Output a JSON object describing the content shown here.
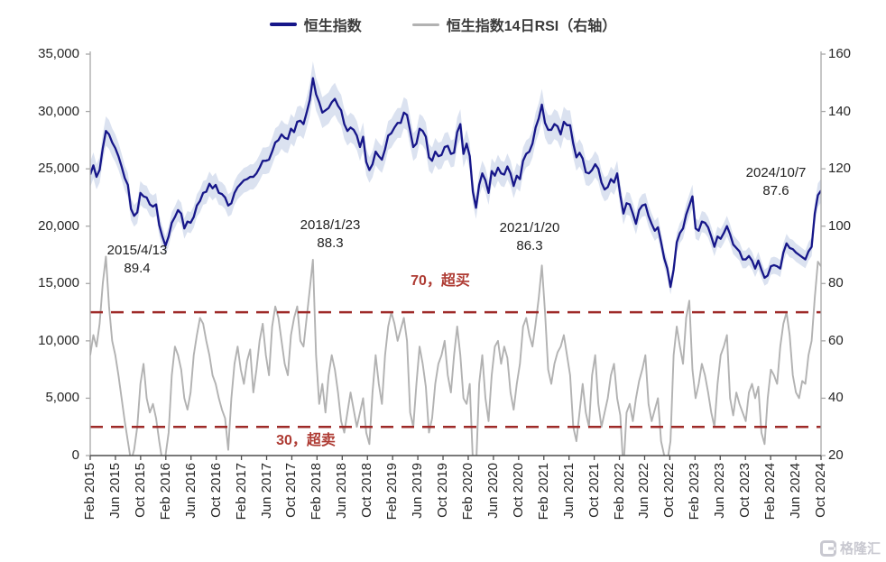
{
  "legend": {
    "items": [
      {
        "label": "恒生指数",
        "color": "#161689"
      },
      {
        "label": "恒生指数14日RSI（右轴）",
        "color": "#b2b2b2"
      }
    ]
  },
  "watermark": {
    "text": "格隆汇"
  },
  "chart_data": {
    "type": "line",
    "title": "",
    "x_start": "2015-02",
    "x_end": "2024-10",
    "x_tick_labels": [
      "Feb 2015",
      "Jun 2015",
      "Oct 2015",
      "Feb 2016",
      "Jun 2016",
      "Oct 2016",
      "Feb 2017",
      "Jun 2017",
      "Oct 2017",
      "Feb 2018",
      "Jun 2018",
      "Oct 2018",
      "Feb 2019",
      "Jun 2019",
      "Oct 2019",
      "Feb 2020",
      "Jun 2020",
      "Oct 2020",
      "Feb 2021",
      "Jun 2021",
      "Oct 2021",
      "Feb 2022",
      "Jun 2022",
      "Oct 2022",
      "Feb 2023",
      "Jun 2023",
      "Oct 2023",
      "Feb 2024",
      "Jun 2024",
      "Oct 2024"
    ],
    "left_axis": {
      "min": 0,
      "max": 35000,
      "ticks": [
        "35,000",
        "30,000",
        "25,000",
        "20,000",
        "15,000",
        "10,000",
        "5,000",
        "0"
      ]
    },
    "right_axis": {
      "min": 20,
      "max": 160,
      "ticks": [
        "160",
        "140",
        "120",
        "100",
        "80",
        "60",
        "40",
        "20"
      ]
    },
    "grid": false,
    "legend_position": "top-center",
    "series": [
      {
        "name": "恒生指数",
        "axis": "left",
        "color": "#161689",
        "band_color": "#dbe2f0",
        "band_pct": 0.045,
        "values": [
          24500,
          25300,
          24300,
          24900,
          26800,
          28300,
          28000,
          27300,
          26800,
          26100,
          25200,
          24200,
          23600,
          21500,
          20900,
          21200,
          22900,
          22600,
          22500,
          21900,
          21700,
          21900,
          20100,
          19100,
          18300,
          19100,
          20300,
          20800,
          21400,
          21100,
          19800,
          20400,
          20300,
          20800,
          21800,
          22200,
          22900,
          23000,
          23700,
          23300,
          23600,
          22900,
          22800,
          22500,
          21800,
          22000,
          22900,
          23400,
          23700,
          24000,
          24100,
          24300,
          24300,
          24600,
          25100,
          25700,
          25700,
          25800,
          26500,
          27300,
          27500,
          28000,
          27700,
          27600,
          28500,
          28200,
          29100,
          29200,
          28900,
          29900,
          31000,
          32900,
          31500,
          30800,
          29900,
          30100,
          30300,
          30800,
          31100,
          30500,
          30100,
          28900,
          28300,
          28600,
          28400,
          27900,
          26900,
          27800,
          25600,
          24900,
          25400,
          26500,
          26100,
          25800,
          26700,
          27900,
          28100,
          28600,
          29000,
          29000,
          29900,
          29700,
          28300,
          26900,
          27200,
          28500,
          28300,
          27800,
          26000,
          25700,
          26500,
          26100,
          26200,
          26900,
          27000,
          26300,
          26400,
          28200,
          28900,
          26300,
          27200,
          26100,
          23000,
          21600,
          23600,
          24600,
          24000,
          22900,
          24800,
          24400,
          25100,
          24600,
          24500,
          25200,
          24600,
          23500,
          24400,
          24100,
          25700,
          26300,
          26500,
          27200,
          28600,
          29400,
          30600,
          29000,
          28400,
          28400,
          28900,
          28700,
          28000,
          29100,
          28800,
          28800,
          27200,
          26000,
          26400,
          25900,
          24700,
          24600,
          24900,
          25400,
          25000,
          23800,
          23200,
          23400,
          24100,
          23800,
          24600,
          22700,
          21100,
          22000,
          21900,
          21100,
          20200,
          21400,
          21800,
          21900,
          20900,
          20200,
          19600,
          19900,
          18600,
          17200,
          16300,
          14700,
          16200,
          18600,
          19400,
          19800,
          21000,
          21800,
          22600,
          19800,
          19600,
          20400,
          20300,
          19900,
          19100,
          18200,
          19100,
          18900,
          19400,
          20000,
          19300,
          18400,
          18100,
          17800,
          17100,
          17100,
          17400,
          17000,
          16300,
          17000,
          16200,
          15500,
          15700,
          16500,
          16600,
          16500,
          16300,
          17700,
          18500,
          18100,
          18000,
          17700,
          17500,
          17300,
          17100,
          17800,
          18200,
          21100,
          22700,
          23100
        ]
      },
      {
        "name": "恒生指数14日RSI（右轴）",
        "axis": "right",
        "color": "#b2b2b2",
        "values": [
          55,
          62,
          58,
          66,
          80,
          89.4,
          72,
          60,
          55,
          48,
          40,
          32,
          25,
          18,
          22,
          30,
          45,
          52,
          40,
          35,
          38,
          33,
          25,
          18,
          20,
          28,
          48,
          58,
          55,
          50,
          40,
          36,
          42,
          55,
          62,
          68,
          66,
          60,
          55,
          48,
          45,
          40,
          36,
          33,
          22,
          40,
          52,
          58,
          50,
          45,
          53,
          57,
          42,
          50,
          60,
          66,
          55,
          48,
          65,
          72,
          68,
          60,
          52,
          48,
          62,
          68,
          72,
          60,
          58,
          68,
          78,
          88.3,
          55,
          38,
          45,
          35,
          48,
          55,
          50,
          42,
          32,
          28,
          35,
          42,
          36,
          30,
          35,
          40,
          28,
          24,
          42,
          55,
          45,
          38,
          55,
          65,
          70,
          66,
          60,
          64,
          68,
          60,
          35,
          30,
          45,
          58,
          52,
          44,
          28,
          33,
          45,
          52,
          55,
          60,
          48,
          42,
          55,
          65,
          55,
          40,
          38,
          45,
          18,
          15,
          45,
          55,
          40,
          32,
          48,
          58,
          60,
          52,
          58,
          54,
          42,
          36,
          45,
          52,
          65,
          68,
          62,
          58,
          66,
          75,
          86.3,
          70,
          50,
          45,
          52,
          56,
          58,
          62,
          55,
          48,
          30,
          25,
          35,
          45,
          35,
          30,
          48,
          55,
          38,
          30,
          35,
          40,
          48,
          52,
          40,
          34,
          15,
          35,
          38,
          32,
          40,
          46,
          50,
          55,
          38,
          32,
          36,
          40,
          25,
          20,
          18,
          25,
          55,
          65,
          58,
          52,
          68,
          74,
          50,
          40,
          45,
          52,
          48,
          42,
          35,
          30,
          45,
          55,
          58,
          62,
          40,
          34,
          42,
          38,
          35,
          32,
          42,
          45,
          40,
          44,
          28,
          24,
          40,
          50,
          48,
          45,
          58,
          66,
          70,
          62,
          48,
          42,
          40,
          46,
          45,
          55,
          60,
          75,
          87.6,
          86
        ]
      }
    ],
    "thresholds": [
      {
        "value": 70,
        "label": "70，超买",
        "color": "#9e2a28"
      },
      {
        "value": 30,
        "label": "30，超卖",
        "color": "#9e2a28"
      }
    ],
    "annotations": [
      {
        "date": "2015/4/13",
        "value": "89.4"
      },
      {
        "date": "2018/1/23",
        "value": "88.3"
      },
      {
        "date": "2021/1/20",
        "value": "86.3"
      },
      {
        "date": "2024/10/7",
        "value": "87.6"
      }
    ]
  }
}
